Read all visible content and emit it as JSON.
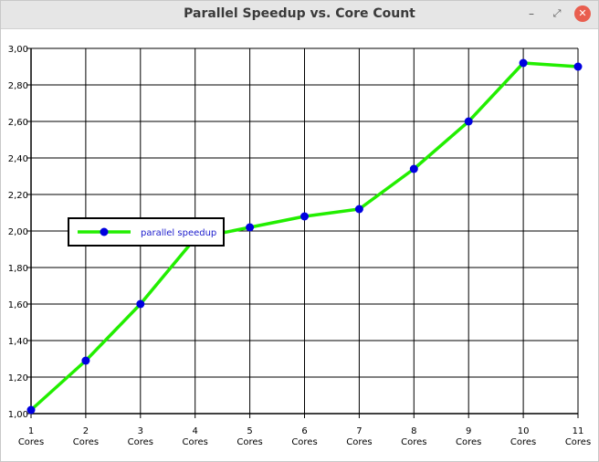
{
  "window": {
    "title": "Parallel Speedup vs. Core Count",
    "buttons": {
      "minimize": "–",
      "restore": "⤢",
      "close": "✕"
    }
  },
  "colors": {
    "line": "#22ee00",
    "marker": "#0000e0",
    "grid": "#000000",
    "legend_text": "#1a1acc"
  },
  "chart_data": {
    "type": "line",
    "title": "",
    "xlabel": "",
    "ylabel": "",
    "categories": [
      "1 Cores",
      "2 Cores",
      "3 Cores",
      "4 Cores",
      "5 Cores",
      "6 Cores",
      "7 Cores",
      "8 Cores",
      "9 Cores",
      "10 Cores",
      "11 Cores"
    ],
    "x": [
      1,
      2,
      3,
      4,
      5,
      6,
      7,
      8,
      9,
      10,
      11
    ],
    "x_tick_labels": [
      [
        "1",
        "Cores"
      ],
      [
        "2",
        "Cores"
      ],
      [
        "3",
        "Cores"
      ],
      [
        "4",
        "Cores"
      ],
      [
        "5",
        "Cores"
      ],
      [
        "6",
        "Cores"
      ],
      [
        "7",
        "Cores"
      ],
      [
        "8",
        "Cores"
      ],
      [
        "9",
        "Cores"
      ],
      [
        "10",
        "Cores"
      ],
      [
        "11",
        "Cores"
      ]
    ],
    "series": [
      {
        "name": "parallel speedup",
        "values": [
          1.02,
          1.29,
          1.6,
          1.96,
          2.02,
          2.08,
          2.12,
          2.34,
          2.6,
          2.92,
          2.9
        ]
      }
    ],
    "ylim": [
      1.0,
      3.0
    ],
    "y_ticks": [
      1.0,
      1.2,
      1.4,
      1.6,
      1.8,
      2.0,
      2.2,
      2.4,
      2.6,
      2.8,
      3.0
    ],
    "y_tick_labels": [
      "1,00",
      "1,20",
      "1,40",
      "1,60",
      "1,80",
      "2,00",
      "2,20",
      "2,40",
      "2,60",
      "2,80",
      "3,00"
    ],
    "grid": true,
    "legend": {
      "placement": "middle-left",
      "entries": [
        "parallel speedup"
      ]
    }
  }
}
